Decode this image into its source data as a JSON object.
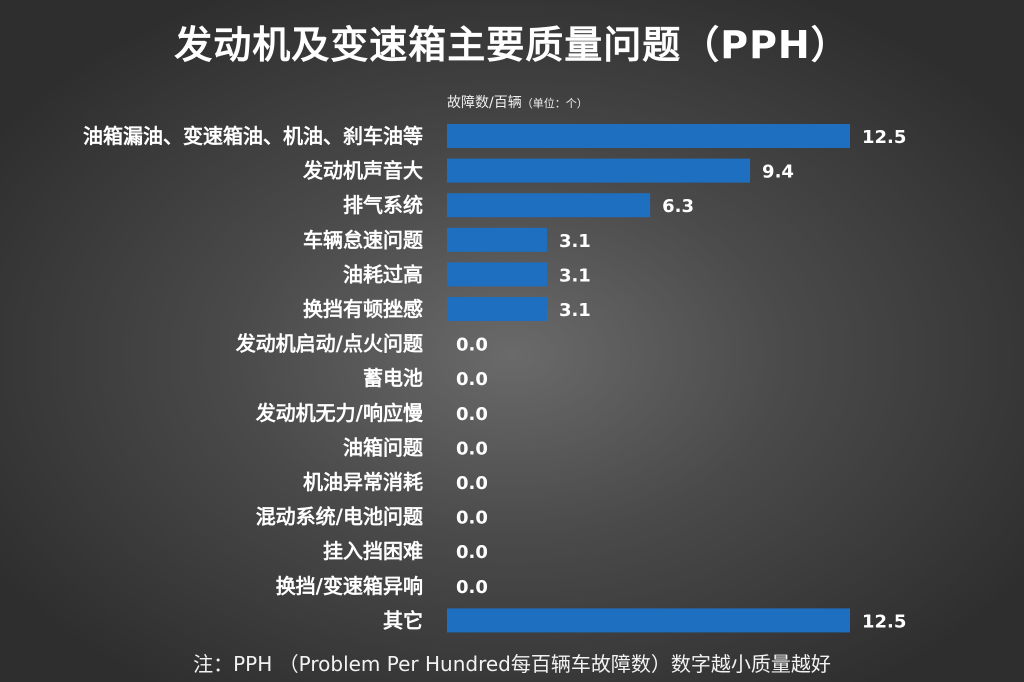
{
  "chart_data": {
    "type": "bar",
    "orientation": "horizontal",
    "title": "发动机及变速箱主要质量问题（PPH）",
    "unit_label": "故障数/百辆",
    "unit_note": "（单位：个）",
    "categories": [
      "油箱漏油、变速箱油、机油、刹车油等",
      "发动机声音大",
      "排气系统",
      "车辆怠速问题",
      "油耗过高",
      "换挡有顿挫感",
      "发动机启动/点火问题",
      "蓄电池",
      "发动机无力/响应慢",
      "油箱问题",
      "机油异常消耗",
      "混动系统/电池问题",
      "挂入挡困难",
      "换挡/变速箱异响",
      "其它"
    ],
    "values": [
      12.5,
      9.4,
      6.3,
      3.1,
      3.1,
      3.1,
      0.0,
      0.0,
      0.0,
      0.0,
      0.0,
      0.0,
      0.0,
      0.0,
      12.5
    ],
    "value_labels": [
      "12.5",
      "9.4",
      "6.3",
      "3.1",
      "3.1",
      "3.1",
      "0.0",
      "0.0",
      "0.0",
      "0.0",
      "0.0",
      "0.0",
      "0.0",
      "0.0",
      "12.5"
    ],
    "xlim": [
      0,
      12.5
    ],
    "grid": false,
    "bar_color": "#1f6fc0"
  },
  "note": "注：PPH （Problem Per Hundred每百辆车故障数）数字越小质量越好"
}
